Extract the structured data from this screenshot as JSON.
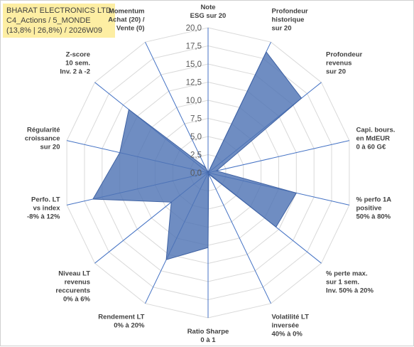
{
  "chart_data": {
    "type": "radar",
    "title_lines": [
      "BHARAT ELECTRONICS LTD",
      "C4_Actions / 5_MONDE",
      "(13,8% | 26,8%) / 2026W09"
    ],
    "rmin": 0,
    "rmax": 20,
    "ticks": [
      "0,0",
      "2,5",
      "5,0",
      "7,5",
      "10,0",
      "12,5",
      "15,0",
      "17,5",
      "20,0"
    ],
    "categories": [
      [
        "Note",
        "ESG sur 20"
      ],
      [
        "Profondeur",
        "historique",
        "sur 20"
      ],
      [
        "Profondeur",
        "revenus",
        "sur 20"
      ],
      [
        "Capi. bours.",
        "en MdEUR",
        "0 à 60 G€"
      ],
      [
        "% perfo 1A",
        "positive",
        "50% à 80%"
      ],
      [
        "% perte max.",
        "sur 1 sem.",
        "Inv. 50% à 20%"
      ],
      [
        "Volatilité LT",
        "inversée",
        "40% à 0%"
      ],
      [
        "Ratio Sharpe",
        "0 à 1"
      ],
      [
        "Rendement LT",
        "0% à 20%"
      ],
      [
        "Niveau LT",
        "revenus",
        "reccurents",
        "0% à 6%"
      ],
      [
        "Perfo. LT",
        "vs index",
        "-8% à 12%"
      ],
      [
        "Régularité",
        "croissance",
        "sur 20"
      ],
      [
        "Z-score",
        "10 sem.",
        "Inv. 2 à -2"
      ],
      [
        "Momentum",
        "Achat (20) /",
        "Vente (0)"
      ]
    ],
    "values": [
      0,
      18.5,
      16.5,
      1.2,
      12.5,
      12.0,
      0.2,
      10.3,
      13.3,
      6.5,
      16.3,
      12.5,
      14.0,
      0.8
    ],
    "series_color": "#4f74b5",
    "grid_color": "#d9d9d9",
    "spoke_color": "#4472c4"
  }
}
